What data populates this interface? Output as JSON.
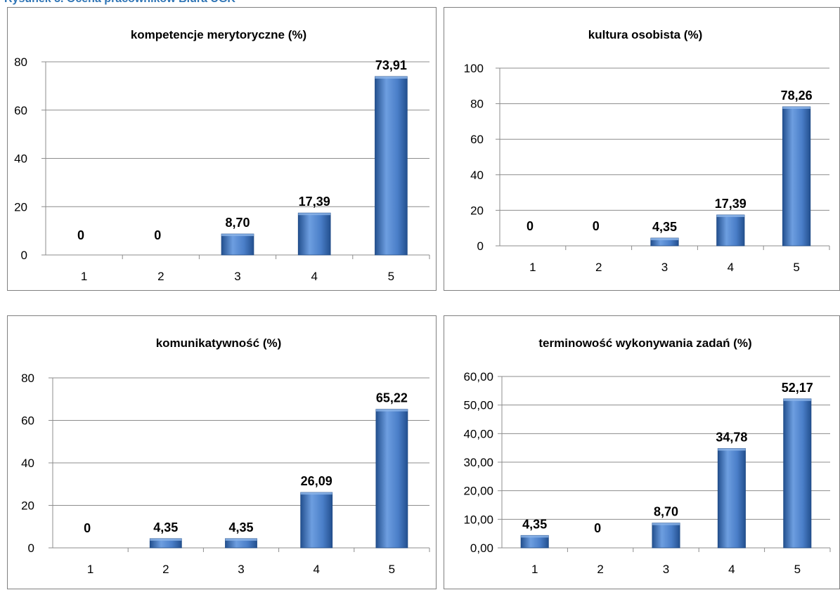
{
  "caption": "Rysunek 5. Ocena pracowników Biura UGK",
  "colors": {
    "bar_light": "#6d9ee0",
    "bar_mid": "#4a7ec8",
    "bar_dark": "#23508f",
    "axis": "#8c8c8c",
    "grid": "#8c8c8c"
  },
  "chart_data": [
    {
      "type": "bar",
      "title": "kompetencje merytoryczne (%)",
      "categories": [
        "1",
        "2",
        "3",
        "4",
        "5"
      ],
      "values": [
        0,
        0,
        8.7,
        17.39,
        73.91
      ],
      "data_labels": [
        "0",
        "0",
        "8,70",
        "17,39",
        "73,91"
      ],
      "yticks": [
        "0",
        "20",
        "40",
        "60",
        "80"
      ],
      "ylim": [
        0,
        80
      ],
      "grid": true,
      "legend": "none"
    },
    {
      "type": "bar",
      "title": "kultura osobista (%)",
      "categories": [
        "1",
        "2",
        "3",
        "4",
        "5"
      ],
      "values": [
        0,
        0,
        4.35,
        17.39,
        78.26
      ],
      "data_labels": [
        "0",
        "0",
        "4,35",
        "17,39",
        "78,26"
      ],
      "yticks": [
        "0",
        "20",
        "40",
        "60",
        "80",
        "100"
      ],
      "ylim": [
        0,
        100
      ],
      "grid": true,
      "legend": "none"
    },
    {
      "type": "bar",
      "title": "komunikatywność (%)",
      "categories": [
        "1",
        "2",
        "3",
        "4",
        "5"
      ],
      "values": [
        0,
        4.35,
        4.35,
        26.09,
        65.22
      ],
      "data_labels": [
        "0",
        "4,35",
        "4,35",
        "26,09",
        "65,22"
      ],
      "yticks": [
        "0",
        "20",
        "40",
        "60",
        "80"
      ],
      "ylim": [
        0,
        80
      ],
      "grid": true,
      "legend": "none"
    },
    {
      "type": "bar",
      "title": "terminowość wykonywania zadań (%)",
      "categories": [
        "1",
        "2",
        "3",
        "4",
        "5"
      ],
      "values": [
        4.35,
        0,
        8.7,
        34.78,
        52.17
      ],
      "data_labels": [
        "4,35",
        "0",
        "8,70",
        "34,78",
        "52,17"
      ],
      "yticks": [
        "0,00",
        "10,00",
        "20,00",
        "30,00",
        "40,00",
        "50,00",
        "60,00"
      ],
      "ylim": [
        0,
        60
      ],
      "grid": true,
      "legend": "none"
    }
  ]
}
